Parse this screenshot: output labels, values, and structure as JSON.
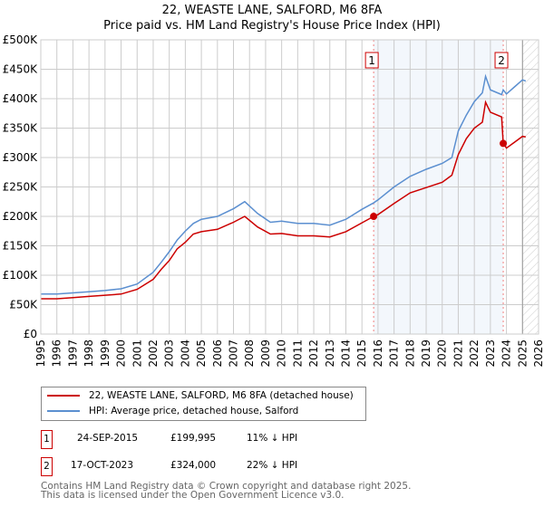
{
  "chart_data": {
    "type": "line",
    "title": "22, WEASTE LANE, SALFORD, M6 8FA",
    "subtitle": "Price paid vs. HM Land Registry's House Price Index (HPI)",
    "xlim": [
      1995,
      2026
    ],
    "ylim": [
      0,
      500000
    ],
    "x_ticks": [
      "1995",
      "1996",
      "1997",
      "1998",
      "1999",
      "2000",
      "2001",
      "2002",
      "2003",
      "2004",
      "2005",
      "2006",
      "2007",
      "2008",
      "2009",
      "2010",
      "2011",
      "2012",
      "2013",
      "2014",
      "2015",
      "2016",
      "2017",
      "2018",
      "2019",
      "2020",
      "2021",
      "2022",
      "2023",
      "2024",
      "2025",
      "2026"
    ],
    "y_ticks": [
      "£0",
      "£50K",
      "£100K",
      "£150K",
      "£200K",
      "£250K",
      "£300K",
      "£350K",
      "£400K",
      "£450K",
      "£500K"
    ],
    "grid": true,
    "series": [
      {
        "name": "22, WEASTE LANE, SALFORD, M6 8FA (detached house)",
        "color": "#cc0000",
        "x": [
          1995,
          1996,
          1997,
          1998,
          1999,
          2000,
          2001,
          2002,
          2002.5,
          2003,
          2003.5,
          2004,
          2004.5,
          2005,
          2006,
          2007,
          2007.7,
          2008.5,
          2009.3,
          2010,
          2011,
          2012,
          2013,
          2014,
          2015,
          2015.73,
          2016,
          2017,
          2018,
          2019,
          2020,
          2020.6,
          2021,
          2021.5,
          2022,
          2022.5,
          2022.7,
          2023,
          2023.7,
          2023.8,
          2024,
          2024.5,
          2025,
          2025.2
        ],
        "y": [
          60000,
          60000,
          62000,
          64000,
          66000,
          68000,
          76000,
          93000,
          110000,
          125000,
          145000,
          156000,
          170000,
          174000,
          178000,
          190000,
          200000,
          182000,
          170000,
          171000,
          167000,
          167000,
          165000,
          174000,
          189000,
          199995,
          203000,
          222000,
          240000,
          249000,
          258000,
          270000,
          305000,
          332000,
          350000,
          360000,
          394000,
          377000,
          369000,
          324000,
          316000,
          326000,
          336000,
          335000
        ]
      },
      {
        "name": "HPI: Average price, detached house, Salford",
        "color": "#5b8fd0",
        "x": [
          1995,
          1996,
          1997,
          1998,
          1999,
          2000,
          2001,
          2002,
          2002.5,
          2003,
          2003.5,
          2004,
          2004.5,
          2005,
          2006,
          2007,
          2007.7,
          2008.5,
          2009.3,
          2010,
          2011,
          2012,
          2013,
          2014,
          2015,
          2015.73,
          2016,
          2017,
          2018,
          2019,
          2020,
          2020.6,
          2021,
          2021.5,
          2022,
          2022.5,
          2022.7,
          2023,
          2023.7,
          2023.8,
          2024,
          2024.5,
          2025,
          2025.2
        ],
        "y": [
          68000,
          68000,
          70000,
          72000,
          74000,
          77000,
          85000,
          105000,
          122000,
          140000,
          160000,
          175000,
          188000,
          195000,
          200000,
          213000,
          225000,
          205000,
          190000,
          192000,
          188000,
          188000,
          185000,
          195000,
          212000,
          223000,
          228000,
          250000,
          268000,
          280000,
          290000,
          300000,
          345000,
          372000,
          395000,
          410000,
          438000,
          415000,
          407000,
          415000,
          408000,
          420000,
          432000,
          430000
        ]
      }
    ],
    "annotations": [
      {
        "label": "1",
        "x": 2015.73,
        "y": 199995,
        "date": "24-SEP-2015",
        "price": "£199,995",
        "hpi": "11% ↓ HPI"
      },
      {
        "label": "2",
        "x": 2023.8,
        "y": 324000,
        "date": "17-OCT-2023",
        "price": "£324,000",
        "hpi": "22% ↓ HPI"
      }
    ],
    "hatched_from": 2025.0
  },
  "footer": [
    "Contains HM Land Registry data © Crown copyright and database right 2025.",
    "This data is licensed under the Open Government Licence v3.0."
  ]
}
